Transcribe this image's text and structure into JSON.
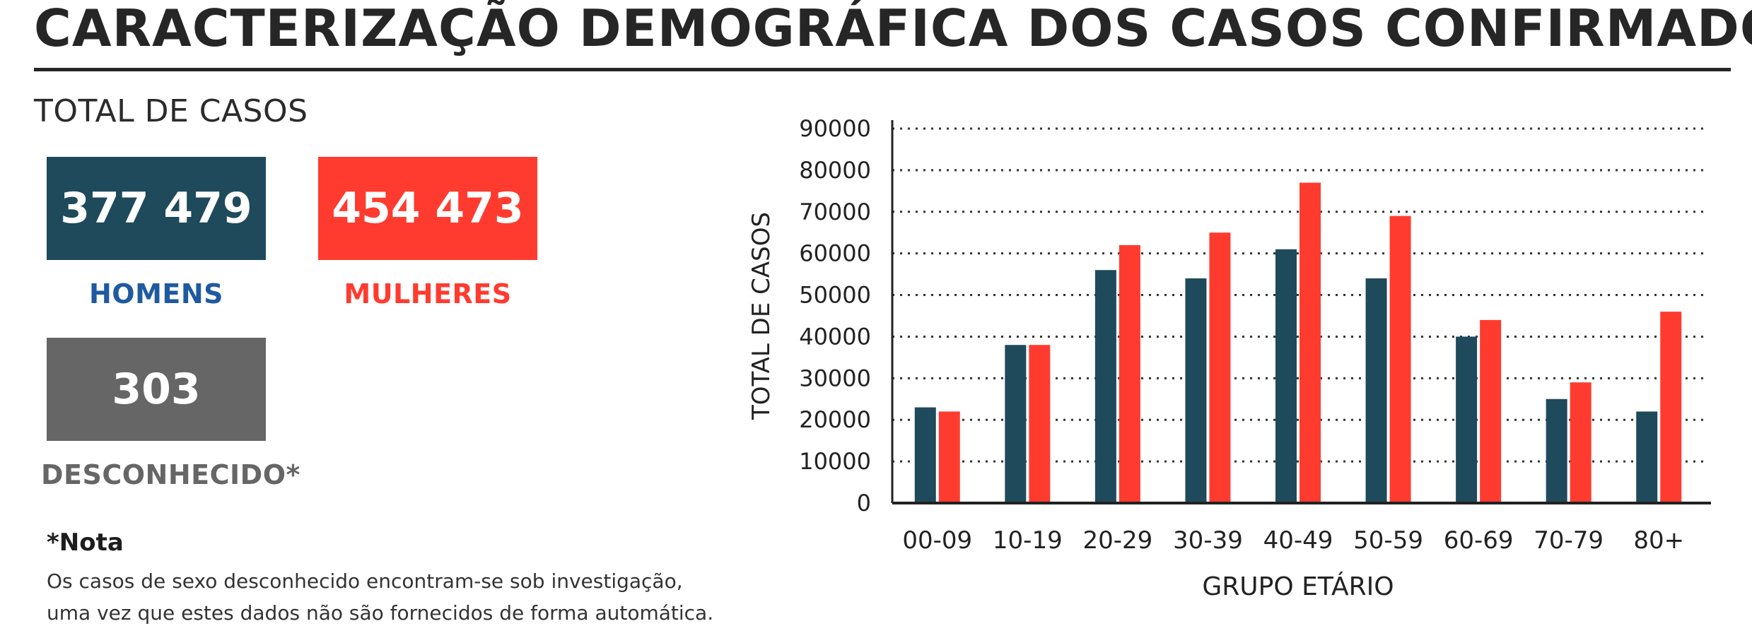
{
  "header": {
    "title": "CARACTERIZAÇÃO DEMOGRÁFICA DOS CASOS CONFIRMADOS"
  },
  "totals": {
    "label": "TOTAL DE CASOS",
    "men_value": "377 479",
    "men_label": "HOMENS",
    "women_value": "454 473",
    "women_label": "MULHERES",
    "unknown_value": "303",
    "unknown_label": "DESCONHECIDO*"
  },
  "note": {
    "title": "*Nota",
    "line1": "Os casos de sexo desconhecido encontram-se sob investigação,",
    "line2": "uma vez que estes dados não são fornecidos de forma automática."
  },
  "colors": {
    "men": "#1e4a5c",
    "women": "#ff3b30",
    "unknown": "#666666"
  },
  "chart_data": {
    "type": "bar",
    "categories": [
      "00-09",
      "10-19",
      "20-29",
      "30-39",
      "40-49",
      "50-59",
      "60-69",
      "70-79",
      "80+"
    ],
    "series": [
      {
        "values": [
          23000,
          38000,
          56000,
          54000,
          61000,
          54000,
          40000,
          25000,
          22000
        ],
        "color": "#1e4a5c"
      },
      {
        "values": [
          22000,
          38000,
          62000,
          65000,
          77000,
          69000,
          44000,
          29000,
          46000
        ],
        "color": "#ff3b30"
      }
    ],
    "xlabel": "GRUPO ETÁRIO",
    "ylabel": "TOTAL DE CASOS",
    "ylim": [
      0,
      90000
    ],
    "yticks": [
      "0",
      "10000",
      "20000",
      "30000",
      "40000",
      "50000",
      "60000",
      "70000",
      "80000",
      "90000"
    ],
    "grid": true
  }
}
